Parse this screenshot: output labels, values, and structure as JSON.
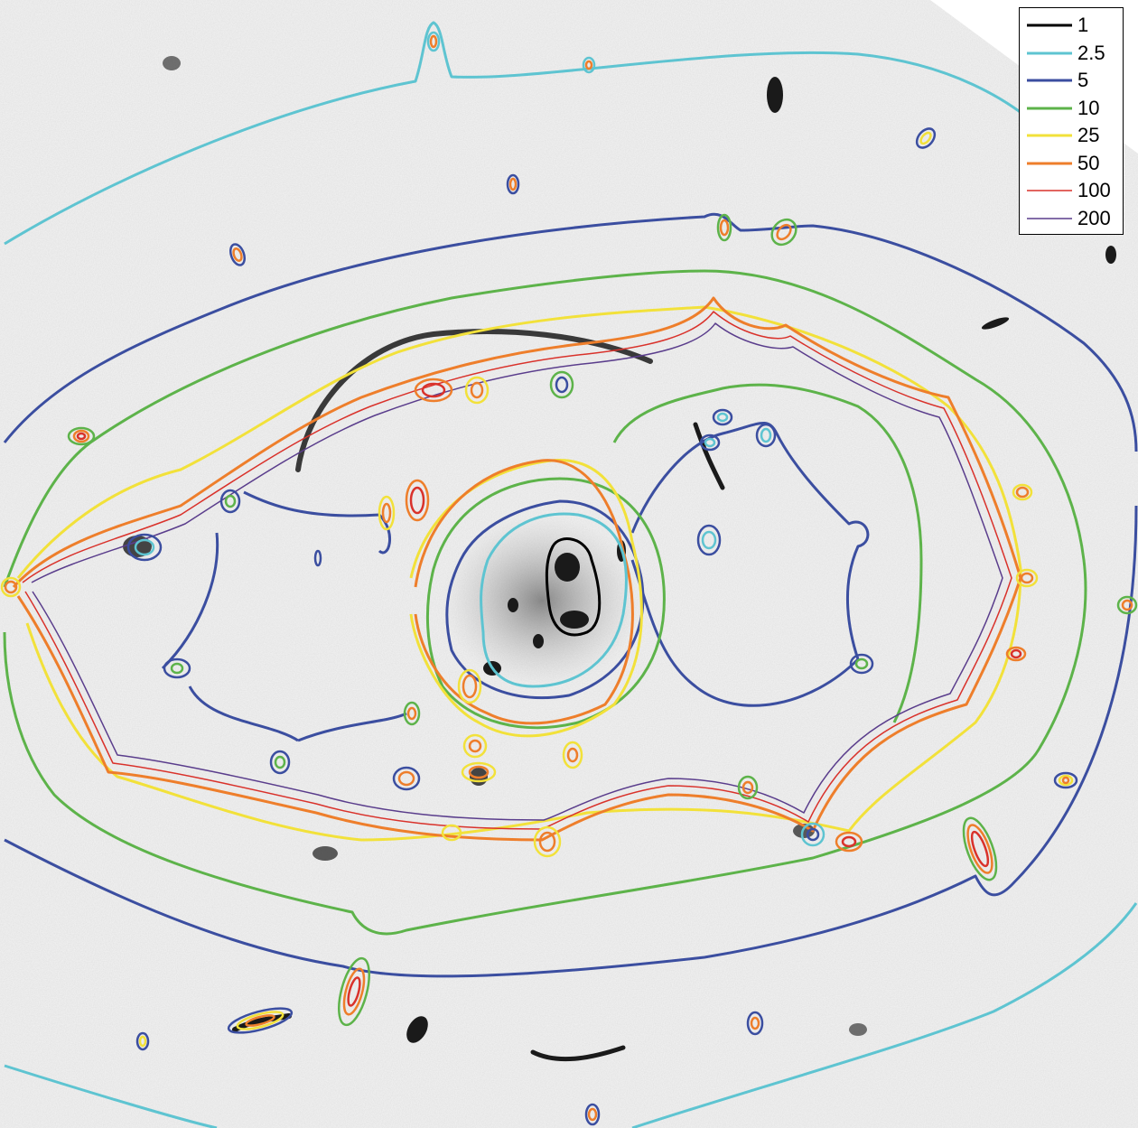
{
  "legend": {
    "items": [
      {
        "label": "1",
        "color": "#000000",
        "width": 3
      },
      {
        "label": "2.5",
        "color": "#5ec4d1",
        "width": 3
      },
      {
        "label": "5",
        "color": "#3b4ea0",
        "width": 3
      },
      {
        "label": "10",
        "color": "#5db34a",
        "width": 3
      },
      {
        "label": "25",
        "color": "#f2e13a",
        "width": 3
      },
      {
        "label": "50",
        "color": "#ee7e2b",
        "width": 3
      },
      {
        "label": "100",
        "color": "#d9322b",
        "width": 1.5
      },
      {
        "label": "200",
        "color": "#5a3d8c",
        "width": 1.5
      }
    ]
  },
  "colors": {
    "background": "#f2f2f2",
    "galaxy": "#1a1a1a"
  }
}
